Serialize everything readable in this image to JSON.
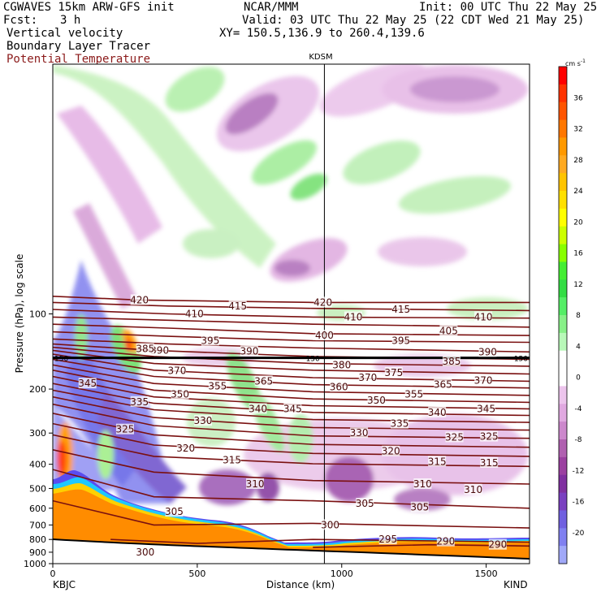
{
  "header": {
    "line1_left": "CGWAVES 15km ARW-GFS init",
    "line1_mid": "NCAR/MMM",
    "line1_right": "Init: 00 UTC Thu 22 May 25",
    "fcst_label": "Fcst:",
    "fcst_value": "3 h",
    "valid": "Valid: 03 UTC Thu 22 May 25 (22 CDT Wed 21 May 25)",
    "field1": "Vertical velocity",
    "field2": "Boundary Layer Tracer",
    "field3": "Potential Temperature",
    "xy": "XY= 150.5,136.9 to 260.4,139.6"
  },
  "colors": {
    "theta": "#7a1010",
    "field3_text": "#8b1a1a",
    "tropopause": "#000000"
  },
  "chart_data": {
    "type": "heatmap",
    "description_fields": [
      "Vertical velocity",
      "Boundary Layer Tracer",
      "Potential Temperature"
    ],
    "xlabel": "Distance (km)",
    "ylabel": "Pressure (hPa), log scale",
    "xlim": [
      0,
      1650
    ],
    "ylim": [
      1000,
      10
    ],
    "y_scale": "log",
    "x_ticks": [
      0,
      500,
      1000,
      1500
    ],
    "y_ticks": [
      100,
      200,
      300,
      400,
      500,
      600,
      700,
      800,
      900,
      1000
    ],
    "left_station": "KBJC",
    "right_station": "KIND",
    "mid_station": "KDSM",
    "mid_station_x": 940,
    "colorbar": {
      "units": "cm s",
      "units_exp": "-1",
      "ticks": [
        36,
        32,
        28,
        24,
        20,
        16,
        12,
        8,
        4,
        0,
        -4,
        -8,
        -12,
        -16,
        -20
      ],
      "colors": [
        "#ff0000",
        "#ff3300",
        "#ff5500",
        "#ff7700",
        "#ff9900",
        "#ffaa22",
        "#ffc400",
        "#ffe000",
        "#ffff00",
        "#ccff00",
        "#88ff00",
        "#44ee33",
        "#33dd44",
        "#55ee66",
        "#88f088",
        "#b8f8b8",
        "#ffffff",
        "#ffffff",
        "#ecc4ec",
        "#e0a8e0",
        "#cc88cc",
        "#b060b0",
        "#9b40a0",
        "#8030a0",
        "#7a40c0",
        "#7060e0",
        "#8080f0",
        "#a0a8f8"
      ]
    },
    "tropopause": {
      "label_left": "150",
      "label_right": "150",
      "label_mid": "150",
      "pressure": 150
    },
    "theta_labels": [
      {
        "v": "420",
        "x": 300,
        "p": 88
      },
      {
        "v": "410",
        "x": 490,
        "p": 100
      },
      {
        "v": "415",
        "x": 640,
        "p": 93
      },
      {
        "v": "420",
        "x": 935,
        "p": 90
      },
      {
        "v": "410",
        "x": 1040,
        "p": 103
      },
      {
        "v": "415",
        "x": 1205,
        "p": 96
      },
      {
        "v": "410",
        "x": 1490,
        "p": 103
      },
      {
        "v": "405",
        "x": 1370,
        "p": 117
      },
      {
        "v": "400",
        "x": 940,
        "p": 122
      },
      {
        "v": "395",
        "x": 545,
        "p": 128
      },
      {
        "v": "395",
        "x": 1205,
        "p": 128
      },
      {
        "v": "390",
        "x": 370,
        "p": 140
      },
      {
        "v": "390",
        "x": 680,
        "p": 141
      },
      {
        "v": "390",
        "x": 1505,
        "p": 142
      },
      {
        "v": "385",
        "x": 1380,
        "p": 155
      },
      {
        "v": "385",
        "x": 320,
        "p": 138
      },
      {
        "v": "380",
        "x": 1000,
        "p": 160
      },
      {
        "v": "375",
        "x": 1180,
        "p": 172
      },
      {
        "v": "370",
        "x": 430,
        "p": 169
      },
      {
        "v": "370",
        "x": 1090,
        "p": 180
      },
      {
        "v": "370",
        "x": 1490,
        "p": 185
      },
      {
        "v": "365",
        "x": 730,
        "p": 186
      },
      {
        "v": "365",
        "x": 1350,
        "p": 192
      },
      {
        "v": "360",
        "x": 990,
        "p": 196
      },
      {
        "v": "355",
        "x": 570,
        "p": 195
      },
      {
        "v": "355",
        "x": 1250,
        "p": 210
      },
      {
        "v": "350",
        "x": 440,
        "p": 210
      },
      {
        "v": "350",
        "x": 1120,
        "p": 222
      },
      {
        "v": "345",
        "x": 120,
        "p": 190
      },
      {
        "v": "345",
        "x": 830,
        "p": 240
      },
      {
        "v": "345",
        "x": 1500,
        "p": 240
      },
      {
        "v": "340",
        "x": 710,
        "p": 240
      },
      {
        "v": "340",
        "x": 1330,
        "p": 248
      },
      {
        "v": "335",
        "x": 300,
        "p": 225
      },
      {
        "v": "335",
        "x": 1200,
        "p": 275
      },
      {
        "v": "330",
        "x": 520,
        "p": 268
      },
      {
        "v": "330",
        "x": 1060,
        "p": 300
      },
      {
        "v": "325",
        "x": 250,
        "p": 290
      },
      {
        "v": "325",
        "x": 1390,
        "p": 312
      },
      {
        "v": "325",
        "x": 1510,
        "p": 310
      },
      {
        "v": "320",
        "x": 460,
        "p": 345
      },
      {
        "v": "320",
        "x": 1170,
        "p": 355
      },
      {
        "v": "315",
        "x": 620,
        "p": 385
      },
      {
        "v": "315",
        "x": 1330,
        "p": 390
      },
      {
        "v": "315",
        "x": 1510,
        "p": 395
      },
      {
        "v": "310",
        "x": 700,
        "p": 480
      },
      {
        "v": "310",
        "x": 1280,
        "p": 480
      },
      {
        "v": "310",
        "x": 1455,
        "p": 505
      },
      {
        "v": "305",
        "x": 420,
        "p": 620
      },
      {
        "v": "305",
        "x": 1080,
        "p": 575
      },
      {
        "v": "305",
        "x": 1270,
        "p": 595
      },
      {
        "v": "300",
        "x": 960,
        "p": 700
      },
      {
        "v": "300",
        "x": 320,
        "p": 900
      },
      {
        "v": "295",
        "x": 1160,
        "p": 800
      },
      {
        "v": "290",
        "x": 1360,
        "p": 815
      },
      {
        "v": "290",
        "x": 1540,
        "p": 840
      }
    ],
    "theta_lines": [
      {
        "v": 420,
        "p": [
          [
            0,
            85
          ],
          [
            300,
            88
          ],
          [
            900,
            90
          ],
          [
            1650,
            90
          ]
        ]
      },
      {
        "v": 415,
        "p": [
          [
            0,
            90
          ],
          [
            400,
            93
          ],
          [
            900,
            95
          ],
          [
            1650,
            97
          ]
        ]
      },
      {
        "v": 410,
        "p": [
          [
            0,
            96
          ],
          [
            400,
            100
          ],
          [
            900,
            103
          ],
          [
            1650,
            104
          ]
        ]
      },
      {
        "v": 405,
        "p": [
          [
            0,
            103
          ],
          [
            400,
            106
          ],
          [
            900,
            110
          ],
          [
            1650,
            113
          ]
        ]
      },
      {
        "v": 400,
        "p": [
          [
            0,
            110
          ],
          [
            400,
            114
          ],
          [
            900,
            120
          ],
          [
            1650,
            122
          ]
        ]
      },
      {
        "v": 395,
        "p": [
          [
            0,
            118
          ],
          [
            400,
            123
          ],
          [
            900,
            128
          ],
          [
            1650,
            130
          ]
        ]
      },
      {
        "v": 390,
        "p": [
          [
            0,
            126
          ],
          [
            400,
            132
          ],
          [
            900,
            137
          ],
          [
            1650,
            142
          ]
        ]
      },
      {
        "v": 385,
        "p": [
          [
            0,
            132
          ],
          [
            350,
            140
          ],
          [
            900,
            148
          ],
          [
            1650,
            152
          ]
        ]
      },
      {
        "v": 380,
        "p": [
          [
            0,
            136
          ],
          [
            350,
            148
          ],
          [
            900,
            158
          ],
          [
            1650,
            162
          ]
        ]
      },
      {
        "v": 375,
        "p": [
          [
            0,
            140
          ],
          [
            350,
            158
          ],
          [
            900,
            168
          ],
          [
            1650,
            174
          ]
        ]
      },
      {
        "v": 370,
        "p": [
          [
            0,
            145
          ],
          [
            350,
            168
          ],
          [
            900,
            180
          ],
          [
            1650,
            186
          ]
        ]
      },
      {
        "v": 365,
        "p": [
          [
            0,
            152
          ],
          [
            350,
            178
          ],
          [
            900,
            192
          ],
          [
            1650,
            198
          ]
        ]
      },
      {
        "v": 360,
        "p": [
          [
            0,
            160
          ],
          [
            350,
            190
          ],
          [
            900,
            205
          ],
          [
            1650,
            212
          ]
        ]
      },
      {
        "v": 355,
        "p": [
          [
            0,
            168
          ],
          [
            350,
            202
          ],
          [
            900,
            219
          ],
          [
            1650,
            226
          ]
        ]
      },
      {
        "v": 350,
        "p": [
          [
            0,
            178
          ],
          [
            350,
            215
          ],
          [
            900,
            233
          ],
          [
            1650,
            240
          ]
        ]
      },
      {
        "v": 345,
        "p": [
          [
            0,
            190
          ],
          [
            350,
            228
          ],
          [
            900,
            248
          ],
          [
            1650,
            255
          ]
        ]
      },
      {
        "v": 340,
        "p": [
          [
            0,
            202
          ],
          [
            350,
            242
          ],
          [
            900,
            265
          ],
          [
            1650,
            272
          ]
        ]
      },
      {
        "v": 335,
        "p": [
          [
            0,
            215
          ],
          [
            350,
            260
          ],
          [
            900,
            285
          ],
          [
            1650,
            292
          ]
        ]
      },
      {
        "v": 330,
        "p": [
          [
            0,
            230
          ],
          [
            350,
            280
          ],
          [
            900,
            308
          ],
          [
            1650,
            315
          ]
        ]
      },
      {
        "v": 325,
        "p": [
          [
            0,
            250
          ],
          [
            350,
            305
          ],
          [
            900,
            333
          ],
          [
            1650,
            342
          ]
        ]
      },
      {
        "v": 320,
        "p": [
          [
            0,
            275
          ],
          [
            350,
            335
          ],
          [
            900,
            362
          ],
          [
            1650,
            372
          ]
        ]
      },
      {
        "v": 315,
        "p": [
          [
            0,
            305
          ],
          [
            350,
            372
          ],
          [
            900,
            398
          ],
          [
            1650,
            408
          ]
        ]
      },
      {
        "v": 310,
        "p": [
          [
            0,
            350
          ],
          [
            350,
            430
          ],
          [
            900,
            465
          ],
          [
            1650,
            480
          ]
        ]
      },
      {
        "v": 305,
        "p": [
          [
            0,
            420
          ],
          [
            350,
            540
          ],
          [
            900,
            560
          ],
          [
            1650,
            600
          ]
        ]
      },
      {
        "v": 300,
        "p": [
          [
            0,
            560
          ],
          [
            350,
            700
          ],
          [
            900,
            690
          ],
          [
            1650,
            720
          ]
        ]
      },
      {
        "v": 295,
        "p": [
          [
            200,
            800
          ],
          [
            500,
            830
          ],
          [
            900,
            800
          ],
          [
            1650,
            820
          ]
        ]
      },
      {
        "v": 290,
        "p": [
          [
            900,
            860
          ],
          [
            1300,
            840
          ],
          [
            1650,
            850
          ]
        ]
      }
    ]
  }
}
